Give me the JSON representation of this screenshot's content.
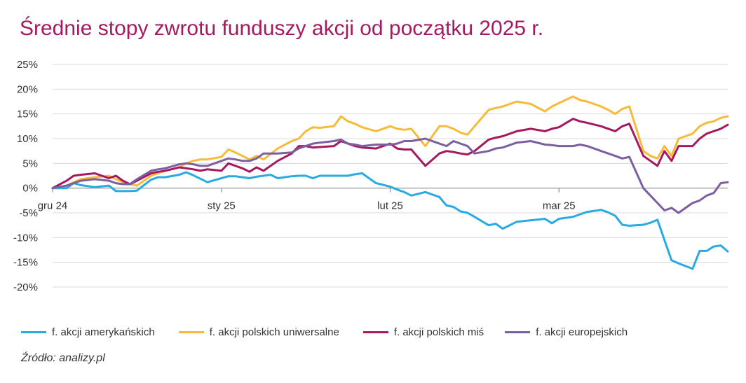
{
  "chart_data": {
    "type": "line",
    "title": "Średnie stopy zwrotu funduszy akcji od początku 2025 r.",
    "xlabel": "",
    "ylabel": "",
    "ylim": [
      -20,
      25
    ],
    "y_ticks": [
      25,
      20,
      15,
      10,
      5,
      0,
      -5,
      -10,
      -15,
      -20
    ],
    "y_tick_labels": [
      "25%",
      "20%",
      "15%",
      "10%",
      "5%",
      "0%",
      "-5%",
      "-10%",
      "-15%",
      "-20%"
    ],
    "x_range": [
      0,
      96
    ],
    "x_ticks": [
      0,
      24,
      48,
      72
    ],
    "x_tick_labels": [
      "gru 24",
      "sty 25",
      "lut 25",
      "mar 25"
    ],
    "grid": true,
    "legend_position": "bottom",
    "series": [
      {
        "name": "f. akcji amerykańskich",
        "color": "#29abe2",
        "x": [
          0,
          2,
          3,
          4,
          6,
          8,
          9,
          10,
          11,
          12,
          14,
          15,
          16,
          18,
          19,
          20,
          21,
          22,
          24,
          25,
          26,
          27,
          28,
          29,
          31,
          32,
          34,
          35,
          36,
          37,
          38,
          40,
          41,
          42,
          43,
          44,
          46,
          48,
          49,
          50,
          51,
          53,
          55,
          56,
          57,
          58,
          59,
          60,
          62,
          63,
          64,
          66,
          68,
          70,
          71,
          72,
          74,
          75,
          76,
          78,
          79,
          80,
          81,
          82,
          84,
          85,
          86,
          87,
          88,
          89,
          91,
          92,
          93,
          94,
          95,
          96
        ],
        "values": [
          0,
          0,
          1,
          0.6,
          0.2,
          0.5,
          -0.6,
          -0.6,
          -0.6,
          -0.5,
          1.7,
          2.2,
          2.2,
          2.7,
          3.2,
          2.6,
          1.9,
          1.2,
          2,
          2.4,
          2.4,
          2.2,
          2,
          2.3,
          2.7,
          2,
          2.4,
          2.5,
          2.5,
          2,
          2.5,
          2.5,
          2.5,
          2.5,
          2.8,
          3,
          1,
          0.3,
          -0.3,
          -0.8,
          -1.5,
          -0.8,
          -1.8,
          -3.5,
          -3.8,
          -4.7,
          -5,
          -5.8,
          -7.5,
          -7.2,
          -8.2,
          -6.8,
          -6.5,
          -6.2,
          -7.1,
          -6.2,
          -5.8,
          -5.3,
          -4.8,
          -4.4,
          -4.9,
          -5.6,
          -7.4,
          -7.6,
          -7.4,
          -7,
          -6.4,
          -10.5,
          -14.6,
          -15.2,
          -16.3,
          -12.7,
          -12.7,
          -11.8,
          -11.6,
          -12.8
        ]
      },
      {
        "name": "f. akcji polskich uniwersalne",
        "color": "#f7bb3a",
        "x": [
          0,
          2,
          3,
          4,
          6,
          8,
          9,
          10,
          11,
          12,
          14,
          15,
          16,
          18,
          19,
          20,
          21,
          22,
          24,
          25,
          26,
          27,
          28,
          29,
          30,
          32,
          34,
          35,
          36,
          37,
          38,
          40,
          41,
          42,
          43,
          44,
          46,
          48,
          49,
          50,
          51,
          53,
          55,
          56,
          57,
          58,
          59,
          60,
          62,
          63,
          64,
          66,
          68,
          70,
          71,
          72,
          74,
          75,
          76,
          78,
          79,
          80,
          81,
          82,
          84,
          85,
          86,
          87,
          88,
          89,
          91,
          92,
          93,
          94,
          95,
          96
        ],
        "values": [
          0,
          0.5,
          1.2,
          1.8,
          2.2,
          2.5,
          1.8,
          1.2,
          0.8,
          0.5,
          2.5,
          3,
          3.5,
          4.2,
          5,
          5.5,
          5.8,
          5.8,
          6.3,
          7.8,
          7.2,
          6.5,
          5.8,
          6.5,
          5.8,
          8,
          9.5,
          10,
          11.5,
          12.3,
          12.2,
          12.5,
          14.5,
          13.5,
          13,
          12.3,
          11.5,
          12.5,
          12,
          11.8,
          12,
          8.5,
          12.5,
          12.5,
          12,
          11.2,
          10.8,
          12.5,
          15.8,
          16.2,
          16.5,
          17.5,
          17,
          15.5,
          16.5,
          17.2,
          18.5,
          17.8,
          17.5,
          16.5,
          15.8,
          15,
          16,
          16.5,
          7.5,
          6.5,
          6,
          8.5,
          6.5,
          10,
          11,
          12.5,
          13.2,
          13.5,
          14.2,
          14.5
        ]
      },
      {
        "name": "f. akcji polskich miś",
        "color": "#a5195f",
        "x": [
          0,
          2,
          3,
          4,
          6,
          8,
          9,
          10,
          11,
          12,
          14,
          15,
          16,
          18,
          19,
          20,
          21,
          22,
          24,
          25,
          26,
          27,
          28,
          29,
          30,
          32,
          34,
          35,
          36,
          37,
          38,
          40,
          41,
          42,
          43,
          44,
          46,
          48,
          49,
          50,
          51,
          53,
          55,
          56,
          57,
          58,
          59,
          60,
          62,
          63,
          64,
          66,
          68,
          70,
          71,
          72,
          74,
          75,
          76,
          78,
          79,
          80,
          81,
          82,
          84,
          85,
          86,
          87,
          88,
          89,
          91,
          92,
          93,
          94,
          95,
          96
        ],
        "values": [
          0,
          1.5,
          2.5,
          2.7,
          3,
          2,
          2.5,
          1.5,
          0.8,
          1.5,
          3,
          3.3,
          3.5,
          4.2,
          4,
          3.8,
          3.5,
          3.8,
          3.5,
          5,
          4.5,
          4,
          3.3,
          4.2,
          3.5,
          5.5,
          7,
          8.5,
          8.5,
          8.2,
          8.3,
          8.5,
          9.5,
          9,
          8.5,
          8.2,
          8,
          9,
          8,
          7.8,
          7.8,
          4.5,
          7,
          7.5,
          7.3,
          7,
          6.8,
          7.5,
          9.8,
          10.2,
          10.5,
          11.5,
          12,
          11.5,
          12,
          12.3,
          14,
          13.5,
          13.2,
          12.5,
          12,
          11.5,
          12.5,
          13,
          6.5,
          5.5,
          4.5,
          7.5,
          5.5,
          8.5,
          8.5,
          10,
          11,
          11.5,
          12,
          12.8
        ]
      },
      {
        "name": "f. akcji europejskich",
        "color": "#7b5fa0",
        "x": [
          0,
          2,
          3,
          4,
          6,
          8,
          9,
          10,
          11,
          12,
          14,
          15,
          16,
          18,
          19,
          20,
          21,
          22,
          24,
          25,
          26,
          27,
          28,
          29,
          30,
          32,
          34,
          35,
          36,
          37,
          38,
          40,
          41,
          42,
          43,
          44,
          46,
          48,
          49,
          50,
          51,
          53,
          55,
          56,
          57,
          58,
          59,
          60,
          62,
          63,
          64,
          66,
          68,
          70,
          71,
          72,
          74,
          75,
          76,
          78,
          79,
          80,
          81,
          82,
          84,
          85,
          86,
          87,
          88,
          89,
          91,
          92,
          93,
          94,
          95,
          96
        ],
        "values": [
          0,
          0.5,
          1,
          1.5,
          1.8,
          1.5,
          1,
          0.8,
          0.8,
          1.8,
          3.5,
          3.8,
          4,
          4.8,
          5,
          4.8,
          4.5,
          4.5,
          5.5,
          6,
          5.8,
          5.5,
          5.5,
          6,
          7,
          7,
          7.2,
          8,
          8.5,
          9,
          9.2,
          9.5,
          9.8,
          9,
          8.8,
          8.5,
          8.8,
          8.8,
          9,
          9.5,
          9.5,
          10,
          9,
          8.5,
          9.5,
          9,
          8.5,
          7,
          7.5,
          8,
          8.2,
          9.2,
          9.5,
          8.8,
          8.7,
          8.5,
          8.5,
          8.8,
          8.5,
          7.5,
          7,
          6.5,
          6,
          6.3,
          0,
          -1.5,
          -3,
          -4.5,
          -4,
          -5,
          -3,
          -2.5,
          -1.5,
          -1,
          1,
          1.2
        ]
      }
    ],
    "source": "Źródło: analizy.pl"
  }
}
